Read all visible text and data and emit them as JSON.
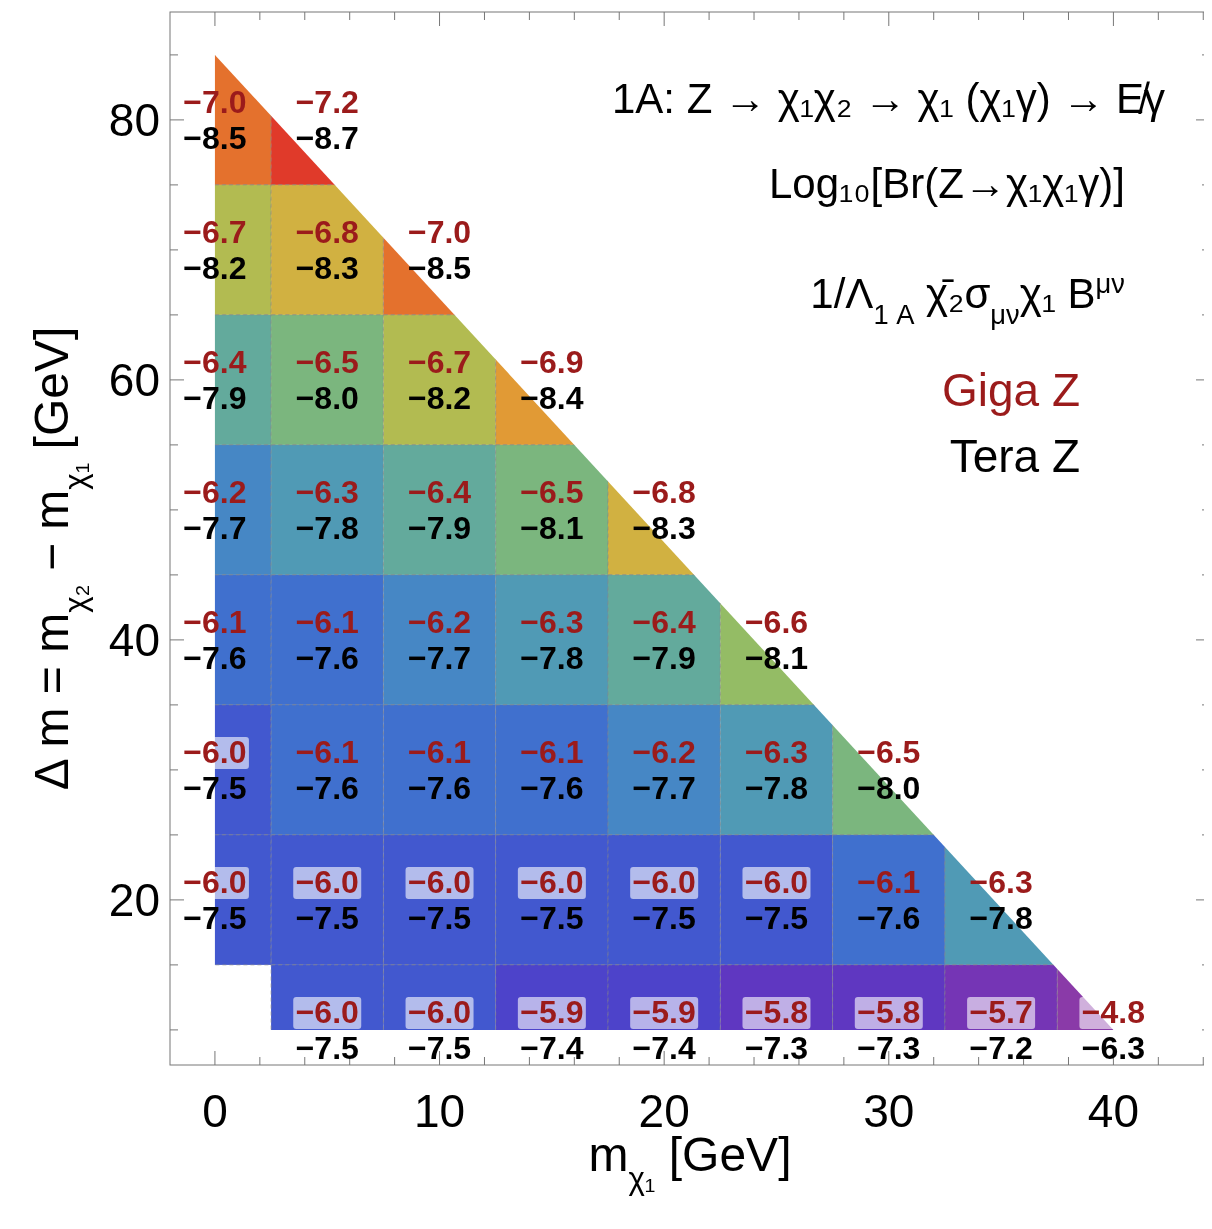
{
  "chart_data": [
    {
      "type": "heatmap",
      "annotations": [
        "1A: Z → χ₁χ₂ → χ₁ (χ₁γ) → E̸γ",
        "Log₁₀[Br(Z→χ₁χ₁γ)]",
        "1/Λ$_{1 A}$ χ̄₂σ$_{μν}$χ₁ B$^{μν}$",
        "Giga Z"
      ],
      "xlabel": "m$_{χ₁}$ [GeV]",
      "ylabel": "Δ m = m$_{χ₂}$ − m$_{χ₁}$ [GeV]",
      "x": [
        0,
        5,
        10,
        15,
        20,
        25,
        30,
        35,
        40
      ],
      "y": [
        80,
        70,
        60,
        50,
        40,
        30,
        20,
        10
      ],
      "cells": [
        [
          -7.0,
          -7.2,
          null,
          null,
          null,
          null,
          null,
          null,
          null
        ],
        [
          -6.7,
          -6.8,
          -7.0,
          null,
          null,
          null,
          null,
          null,
          null
        ],
        [
          -6.4,
          -6.5,
          -6.7,
          -6.9,
          null,
          null,
          null,
          null,
          null
        ],
        [
          -6.2,
          -6.3,
          -6.4,
          -6.5,
          -6.8,
          null,
          null,
          null,
          null
        ],
        [
          -6.1,
          -6.1,
          -6.2,
          -6.3,
          -6.4,
          -6.6,
          null,
          null,
          null
        ],
        [
          -6.0,
          -6.1,
          -6.1,
          -6.1,
          -6.2,
          -6.3,
          -6.5,
          null,
          null
        ],
        [
          -6.0,
          -6.0,
          -6.0,
          -6.0,
          -6.0,
          -6.0,
          -6.1,
          -6.3,
          null
        ],
        [
          null,
          -6.0,
          -6.0,
          -5.9,
          -5.9,
          -5.8,
          -5.8,
          -5.7,
          -4.8
        ]
      ],
      "cell_labels": [
        [
          "−7.0",
          "−7.2",
          null,
          null,
          null,
          null,
          null,
          null,
          null
        ],
        [
          "−6.7",
          "−6.8",
          "−7.0",
          null,
          null,
          null,
          null,
          null,
          null
        ],
        [
          "−6.4",
          "−6.5",
          "−6.7",
          "−6.9",
          null,
          null,
          null,
          null,
          null
        ],
        [
          "−6.2",
          "−6.3",
          "−6.4",
          "−6.5",
          "−6.8",
          null,
          null,
          null,
          null
        ],
        [
          "−6.1",
          "−6.1",
          "−6.2",
          "−6.3",
          "−6.4",
          "−6.6",
          null,
          null,
          null
        ],
        [
          "−6.0",
          "−6.1",
          "−6.1",
          "−6.1",
          "−6.2",
          "−6.3",
          "−6.5",
          null,
          null
        ],
        [
          "−6.0",
          "−6.0",
          "−6.0",
          "−6.0",
          "−6.0",
          "−6.0",
          "−6.1",
          "−6.3",
          null
        ],
        [
          null,
          "−6.0",
          "−6.0",
          "−5.9",
          "−5.9",
          "−5.8",
          "−5.8",
          "−5.7",
          "−4.8"
        ]
      ],
      "data_labels": true,
      "xlim": [
        -2,
        44.3
      ],
      "ylim": [
        7.3,
        88.3
      ],
      "xticks": [
        0,
        {
          "value": 2,
          "label": null
        },
        {
          "value": 4,
          "label": null
        },
        {
          "value": 6,
          "label": null
        },
        {
          "value": 8,
          "label": null
        },
        10,
        {
          "value": 12,
          "label": null
        },
        {
          "value": 14,
          "label": null
        },
        {
          "value": 16,
          "label": null
        },
        {
          "value": 18,
          "label": null
        },
        20,
        {
          "value": 22,
          "label": null
        },
        {
          "value": 24,
          "label": null
        },
        {
          "value": 26,
          "label": null
        },
        {
          "value": 28,
          "label": null
        },
        30,
        {
          "value": 32,
          "label": null
        },
        {
          "value": 34,
          "label": null
        },
        {
          "value": 36,
          "label": null
        },
        {
          "value": 38,
          "label": null
        },
        40,
        {
          "value": 42,
          "label": null
        },
        {
          "value": 44,
          "label": null
        }
      ],
      "yticks": [
        {
          "value": 10,
          "label": null
        },
        {
          "value": 15,
          "label": null
        },
        20,
        {
          "value": 25,
          "label": null
        },
        {
          "value": 30,
          "label": null
        },
        {
          "value": 35,
          "label": null
        },
        40,
        {
          "value": 45,
          "label": null
        },
        {
          "value": 50,
          "label": null
        },
        {
          "value": 55,
          "label": null
        },
        60,
        {
          "value": 65,
          "label": null
        },
        {
          "value": 70,
          "label": null
        },
        {
          "value": 75,
          "label": null
        },
        80,
        {
          "value": 85,
          "label": null
        }
      ]
    },
    {
      "type": "heatmap",
      "annotations": [
        "Tera Z"
      ],
      "x": [
        0,
        5,
        10,
        15,
        20,
        25,
        30,
        35,
        40
      ],
      "y": [
        80,
        70,
        60,
        50,
        40,
        30,
        20,
        10
      ],
      "cells": [
        [
          -8.5,
          -8.7,
          null,
          null,
          null,
          null,
          null,
          null,
          null
        ],
        [
          -8.2,
          -8.3,
          -8.5,
          null,
          null,
          null,
          null,
          null,
          null
        ],
        [
          -7.9,
          -8.0,
          -8.2,
          -8.4,
          null,
          null,
          null,
          null,
          null
        ],
        [
          -7.7,
          -7.8,
          -7.9,
          -8.1,
          -8.3,
          null,
          null,
          null,
          null
        ],
        [
          -7.6,
          -7.6,
          -7.7,
          -7.8,
          -7.9,
          -8.1,
          null,
          null,
          null
        ],
        [
          -7.5,
          -7.6,
          -7.6,
          -7.6,
          -7.7,
          -7.8,
          -8.0,
          null,
          null
        ],
        [
          -7.5,
          -7.5,
          -7.5,
          -7.5,
          -7.5,
          -7.5,
          -7.6,
          -7.8,
          null
        ],
        [
          null,
          -7.5,
          -7.5,
          -7.4,
          -7.4,
          -7.3,
          -7.3,
          -7.2,
          -6.3
        ]
      ],
      "cell_labels": [
        [
          "−8.5",
          "−8.7",
          null,
          null,
          null,
          null,
          null,
          null,
          null
        ],
        [
          "−8.2",
          "−8.3",
          "−8.5",
          null,
          null,
          null,
          null,
          null,
          null
        ],
        [
          "−7.9",
          "−8.0",
          "−8.2",
          "−8.4",
          null,
          null,
          null,
          null,
          null
        ],
        [
          "−7.7",
          "−7.8",
          "−7.9",
          "−8.1",
          "−8.3",
          null,
          null,
          null,
          null
        ],
        [
          "−7.6",
          "−7.6",
          "−7.7",
          "−7.8",
          "−7.9",
          "−8.1",
          null,
          null,
          null
        ],
        [
          "−7.5",
          "−7.6",
          "−7.6",
          "−7.6",
          "−7.7",
          "−7.8",
          "−8.0",
          null,
          null
        ],
        [
          "−7.5",
          "−7.5",
          "−7.5",
          "−7.5",
          "−7.5",
          "−7.5",
          "−7.6",
          "−7.8",
          null
        ],
        [
          null,
          "−7.5",
          "−7.5",
          "−7.4",
          "−7.4",
          "−7.3",
          "−7.3",
          "−7.2",
          "−6.3"
        ]
      ],
      "data_labels": true,
      "xlim": [
        -2,
        44.3
      ],
      "ylim": [
        7.3,
        88.3
      ]
    }
  ]
}
